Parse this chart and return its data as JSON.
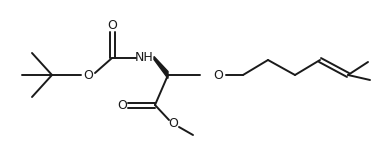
{
  "bg_color": "#ffffff",
  "line_color": "#1a1a1a",
  "lw": 1.4,
  "fs": 8.5,
  "figsize": [
    3.85,
    1.54
  ],
  "dpi": 100,
  "xlim": [
    0,
    385
  ],
  "ylim": [
    0,
    154
  ]
}
